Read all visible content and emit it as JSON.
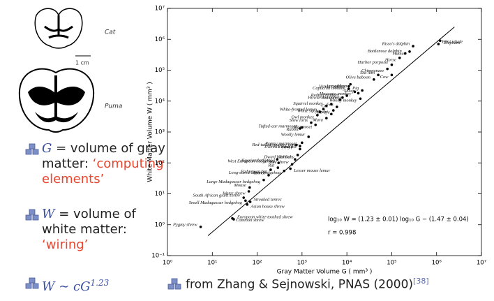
{
  "chart_data": {
    "type": "scatter",
    "x_label": "Gray Matter Volume G ( mm³ )",
    "y_label": "White Matter Volume W ( mm³ )",
    "log_x": true,
    "log_y": true,
    "xlim": [
      1,
      10000000
    ],
    "ylim": [
      0.1,
      10000000
    ],
    "xticks": [
      {
        "value": 1,
        "label": "10⁰"
      },
      {
        "value": 10,
        "label": "10¹"
      },
      {
        "value": 100,
        "label": "10²"
      },
      {
        "value": 1000,
        "label": "10³"
      },
      {
        "value": 10000,
        "label": "10⁴"
      },
      {
        "value": 100000,
        "label": "10⁵"
      },
      {
        "value": 1000000,
        "label": "10⁶"
      },
      {
        "value": 10000000,
        "label": "10⁷"
      }
    ],
    "yticks": [
      {
        "value": 0.1,
        "label": "10⁻¹"
      },
      {
        "value": 1,
        "label": "10⁰"
      },
      {
        "value": 10,
        "label": "10¹"
      },
      {
        "value": 100,
        "label": "10²"
      },
      {
        "value": 1000,
        "label": "10³"
      },
      {
        "value": 10000,
        "label": "10⁴"
      },
      {
        "value": 100000,
        "label": "10⁵"
      },
      {
        "value": 1000000,
        "label": "10⁶"
      },
      {
        "value": 10000000,
        "label": "10⁷"
      }
    ],
    "color": "#000000",
    "point_labels": [
      "Pygmy shrew",
      "Common shrew",
      "European white-toothed shrew",
      "Small Madagascar hedgehog",
      "South African giant shrew",
      "Asian house shrew",
      "Streaked tenrec",
      "Water shrew",
      "Mouse",
      "Large Madagascar hedgehog",
      "Tenrec",
      "Fisherman bat",
      "Rat",
      "Long-eared desert hedgehog",
      "Algerian hedgehog",
      "West European hedgehog",
      "Tree shrew",
      "Lesser mouse lemur",
      "Tarsier",
      "Dwarf bushbaby",
      "Flying fox",
      "Everett's tupaia",
      "Pygmy marmoset",
      "Red-tailed sportive lemur",
      "Woolly lemur",
      "Rabbit",
      "Tufted-ear marmoset",
      "Marmoset",
      "Slow loris",
      "Owl monkey",
      "White-fronted lemur",
      "Mara",
      "Indri",
      "Aye-aye",
      "Fox",
      "White sifaka",
      "Squirrel monkey",
      "Cat",
      "Howler monkey",
      "Red colobus",
      "Redtail monkey",
      "Woolly monkey",
      "Sheep",
      "Macaque monkey",
      "Pig",
      "Lar gibbon",
      "Vervet monkey",
      "Capuchin monkey",
      "Olive baboon",
      "Cow",
      "Sea lion",
      "Chimpanzee",
      "Harbor porpoise",
      "Horse",
      "Bottlenose dolphin",
      "Human",
      "Risso's dolphin",
      "Elephant",
      "Pilot whale"
    ],
    "x": [
      5.5,
      28,
      30,
      55,
      50,
      60,
      70,
      65,
      68,
      140,
      180,
      200,
      290,
      400,
      300,
      280,
      600,
      550,
      700,
      800,
      900,
      750,
      900,
      1000,
      1400,
      1000,
      900,
      2000,
      1600,
      2200,
      2500,
      3500,
      4500,
      5000,
      6000,
      3000,
      3500,
      4500,
      7000,
      10000,
      8000,
      20000,
      18000,
      15000,
      22000,
      12000,
      11000,
      11000,
      40000,
      100000,
      50000,
      80000,
      100000,
      150000,
      200000,
      250000,
      300000,
      1200000,
      1100000
    ],
    "values": [
      0.85,
      1.6,
      1.5,
      6,
      7.5,
      4.5,
      5.5,
      12,
      16,
      28,
      40,
      60,
      70,
      55,
      100,
      130,
      90,
      65,
      130,
      180,
      280,
      380,
      350,
      450,
      700,
      1400,
      1300,
      1700,
      2000,
      3500,
      4500,
      2800,
      3800,
      5000,
      6500,
      5500,
      7000,
      8000,
      11000,
      15000,
      13000,
      12000,
      18000,
      20000,
      22000,
      35000,
      25000,
      30000,
      50000,
      70000,
      70000,
      110000,
      150000,
      250000,
      350000,
      400000,
      600000,
      900000,
      700000
    ],
    "fit_line": {
      "x": [
        8,
        2500000
      ],
      "values": [
        0.44,
        2500000
      ]
    },
    "annotations": [
      "log₁₀ W = (1.23 ± 0.01) log₁₀ G − (1.47 ± 0.04)",
      "r = 0.998"
    ]
  },
  "slide": {
    "images": {
      "cat": "Cat",
      "puma": "Puma",
      "scale": "1 cm"
    },
    "bullets": [
      {
        "symbol": "G",
        "text": " = volume of gray matter: ",
        "highlight": "‘computing elements’"
      },
      {
        "symbol": "W",
        "text": " = volume of white matter: ",
        "highlight": "‘wiring’"
      },
      {
        "symbol": "W ∼ cG",
        "exponent": "1.23"
      }
    ],
    "citation": "from Zhang & Sejnowski, PNAS (2000)",
    "citation_ref": "[38]"
  }
}
